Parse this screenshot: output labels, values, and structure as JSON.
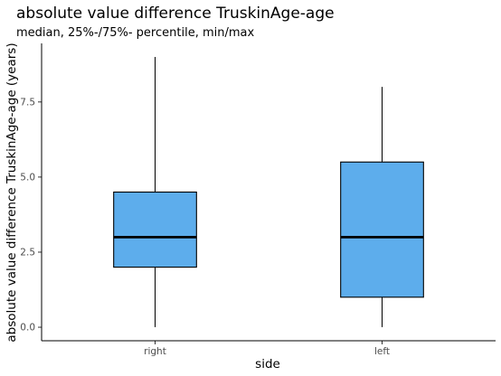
{
  "chart_data": {
    "type": "boxplot",
    "title": "absolute value difference TruskinAge-age",
    "subtitle": "median, 25%-/75%- percentile, min/max",
    "xlabel": "side",
    "ylabel": "absolute value difference TruskinAge-age (years)",
    "categories": [
      "right",
      "left"
    ],
    "boxes": [
      {
        "category": "right",
        "min": 0,
        "q1": 2,
        "median": 3,
        "q3": 4.5,
        "max": 9
      },
      {
        "category": "left",
        "min": 0,
        "q1": 1,
        "median": 3,
        "q3": 5.5,
        "max": 8
      }
    ],
    "ylim": [
      -0.45,
      9.45
    ],
    "y_ticks": [
      0,
      2.5,
      5,
      7.5
    ],
    "y_tick_labels": [
      "0.0",
      "2.5",
      "5.0",
      "7.5"
    ],
    "box_fill": "#5DADEC",
    "grid": false
  }
}
